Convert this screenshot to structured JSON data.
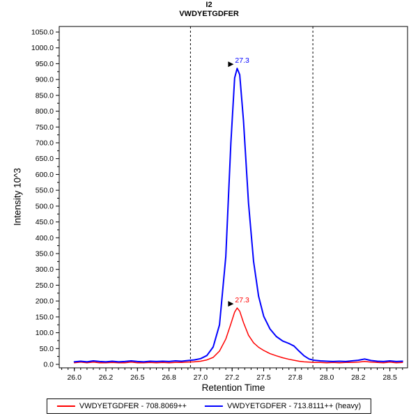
{
  "chart_data": {
    "type": "line",
    "title": "I2",
    "subtitle": "VWDYETGDFER",
    "xlabel": "Retention Time",
    "ylabel": "Intensity 10^3",
    "xlim": [
      25.88,
      28.64
    ],
    "ylim": [
      0,
      1050
    ],
    "grid": false,
    "legend_position": "bottom",
    "x_ticks": [
      {
        "value": 26.0,
        "label": "26.0"
      },
      {
        "value": 26.25,
        "label": "26.2"
      },
      {
        "value": 26.5,
        "label": "26.5"
      },
      {
        "value": 26.75,
        "label": "26.8"
      },
      {
        "value": 27.0,
        "label": "27.0"
      },
      {
        "value": 27.25,
        "label": "27.2"
      },
      {
        "value": 27.5,
        "label": "27.5"
      },
      {
        "value": 27.75,
        "label": "27.8"
      },
      {
        "value": 28.0,
        "label": "28.0"
      },
      {
        "value": 28.25,
        "label": "28.2"
      },
      {
        "value": 28.5,
        "label": "28.5"
      }
    ],
    "y_ticks": [
      0,
      50,
      100,
      150,
      200,
      250,
      300,
      350,
      400,
      450,
      500,
      550,
      600,
      650,
      700,
      750,
      800,
      850,
      900,
      950,
      1000,
      1050
    ],
    "boundaries": [
      26.92,
      27.89
    ],
    "annotations": [
      {
        "x": 27.29,
        "y": 935,
        "label": "27.3",
        "color": "#0000FF"
      },
      {
        "x": 27.29,
        "y": 178,
        "label": "27.3",
        "color": "#FF0000"
      }
    ],
    "series": [
      {
        "name": "VWDYETGDFER - 708.8069++",
        "color": "#FF0000",
        "width": 1.5,
        "points": [
          [
            26.0,
            5
          ],
          [
            26.05,
            7
          ],
          [
            26.1,
            5
          ],
          [
            26.15,
            7
          ],
          [
            26.2,
            5
          ],
          [
            26.25,
            5
          ],
          [
            26.3,
            6
          ],
          [
            26.35,
            5
          ],
          [
            26.4,
            5
          ],
          [
            26.45,
            7
          ],
          [
            26.5,
            5
          ],
          [
            26.55,
            5
          ],
          [
            26.6,
            6
          ],
          [
            26.65,
            5
          ],
          [
            26.7,
            6
          ],
          [
            26.75,
            5
          ],
          [
            26.8,
            6
          ],
          [
            26.85,
            6
          ],
          [
            26.9,
            7
          ],
          [
            26.95,
            8
          ],
          [
            27.0,
            10
          ],
          [
            27.05,
            14
          ],
          [
            27.1,
            22
          ],
          [
            27.15,
            42
          ],
          [
            27.2,
            80
          ],
          [
            27.24,
            128
          ],
          [
            27.27,
            165
          ],
          [
            27.29,
            178
          ],
          [
            27.31,
            168
          ],
          [
            27.34,
            132
          ],
          [
            27.38,
            92
          ],
          [
            27.42,
            68
          ],
          [
            27.46,
            54
          ],
          [
            27.5,
            44
          ],
          [
            27.55,
            34
          ],
          [
            27.6,
            27
          ],
          [
            27.65,
            21
          ],
          [
            27.7,
            16
          ],
          [
            27.74,
            13
          ],
          [
            27.78,
            10
          ],
          [
            27.82,
            8
          ],
          [
            27.86,
            7
          ],
          [
            27.9,
            6
          ],
          [
            27.95,
            6
          ],
          [
            28.0,
            5
          ],
          [
            28.05,
            6
          ],
          [
            28.1,
            5
          ],
          [
            28.15,
            6
          ],
          [
            28.2,
            6
          ],
          [
            28.25,
            7
          ],
          [
            28.3,
            9
          ],
          [
            28.35,
            7
          ],
          [
            28.4,
            6
          ],
          [
            28.45,
            5
          ],
          [
            28.5,
            7
          ],
          [
            28.55,
            5
          ],
          [
            28.6,
            6
          ]
        ]
      },
      {
        "name": "VWDYETGDFER - 713.8111++ (heavy)",
        "color": "#0000FF",
        "width": 2,
        "points": [
          [
            26.0,
            8
          ],
          [
            26.05,
            10
          ],
          [
            26.1,
            8
          ],
          [
            26.15,
            11
          ],
          [
            26.2,
            9
          ],
          [
            26.25,
            8
          ],
          [
            26.3,
            10
          ],
          [
            26.35,
            8
          ],
          [
            26.4,
            9
          ],
          [
            26.45,
            11
          ],
          [
            26.5,
            9
          ],
          [
            26.55,
            8
          ],
          [
            26.6,
            10
          ],
          [
            26.65,
            9
          ],
          [
            26.7,
            10
          ],
          [
            26.75,
            9
          ],
          [
            26.8,
            11
          ],
          [
            26.85,
            10
          ],
          [
            26.9,
            12
          ],
          [
            26.95,
            14
          ],
          [
            27.0,
            18
          ],
          [
            27.05,
            28
          ],
          [
            27.1,
            55
          ],
          [
            27.15,
            125
          ],
          [
            27.2,
            340
          ],
          [
            27.24,
            700
          ],
          [
            27.27,
            905
          ],
          [
            27.29,
            935
          ],
          [
            27.31,
            915
          ],
          [
            27.34,
            770
          ],
          [
            27.38,
            510
          ],
          [
            27.42,
            325
          ],
          [
            27.46,
            215
          ],
          [
            27.5,
            152
          ],
          [
            27.55,
            112
          ],
          [
            27.6,
            88
          ],
          [
            27.65,
            74
          ],
          [
            27.7,
            66
          ],
          [
            27.74,
            58
          ],
          [
            27.78,
            42
          ],
          [
            27.82,
            27
          ],
          [
            27.86,
            17
          ],
          [
            27.9,
            13
          ],
          [
            27.95,
            11
          ],
          [
            28.0,
            10
          ],
          [
            28.05,
            9
          ],
          [
            28.1,
            10
          ],
          [
            28.15,
            9
          ],
          [
            28.2,
            11
          ],
          [
            28.25,
            13
          ],
          [
            28.3,
            17
          ],
          [
            28.35,
            12
          ],
          [
            28.4,
            10
          ],
          [
            28.45,
            9
          ],
          [
            28.5,
            11
          ],
          [
            28.55,
            9
          ],
          [
            28.6,
            10
          ]
        ]
      }
    ]
  }
}
